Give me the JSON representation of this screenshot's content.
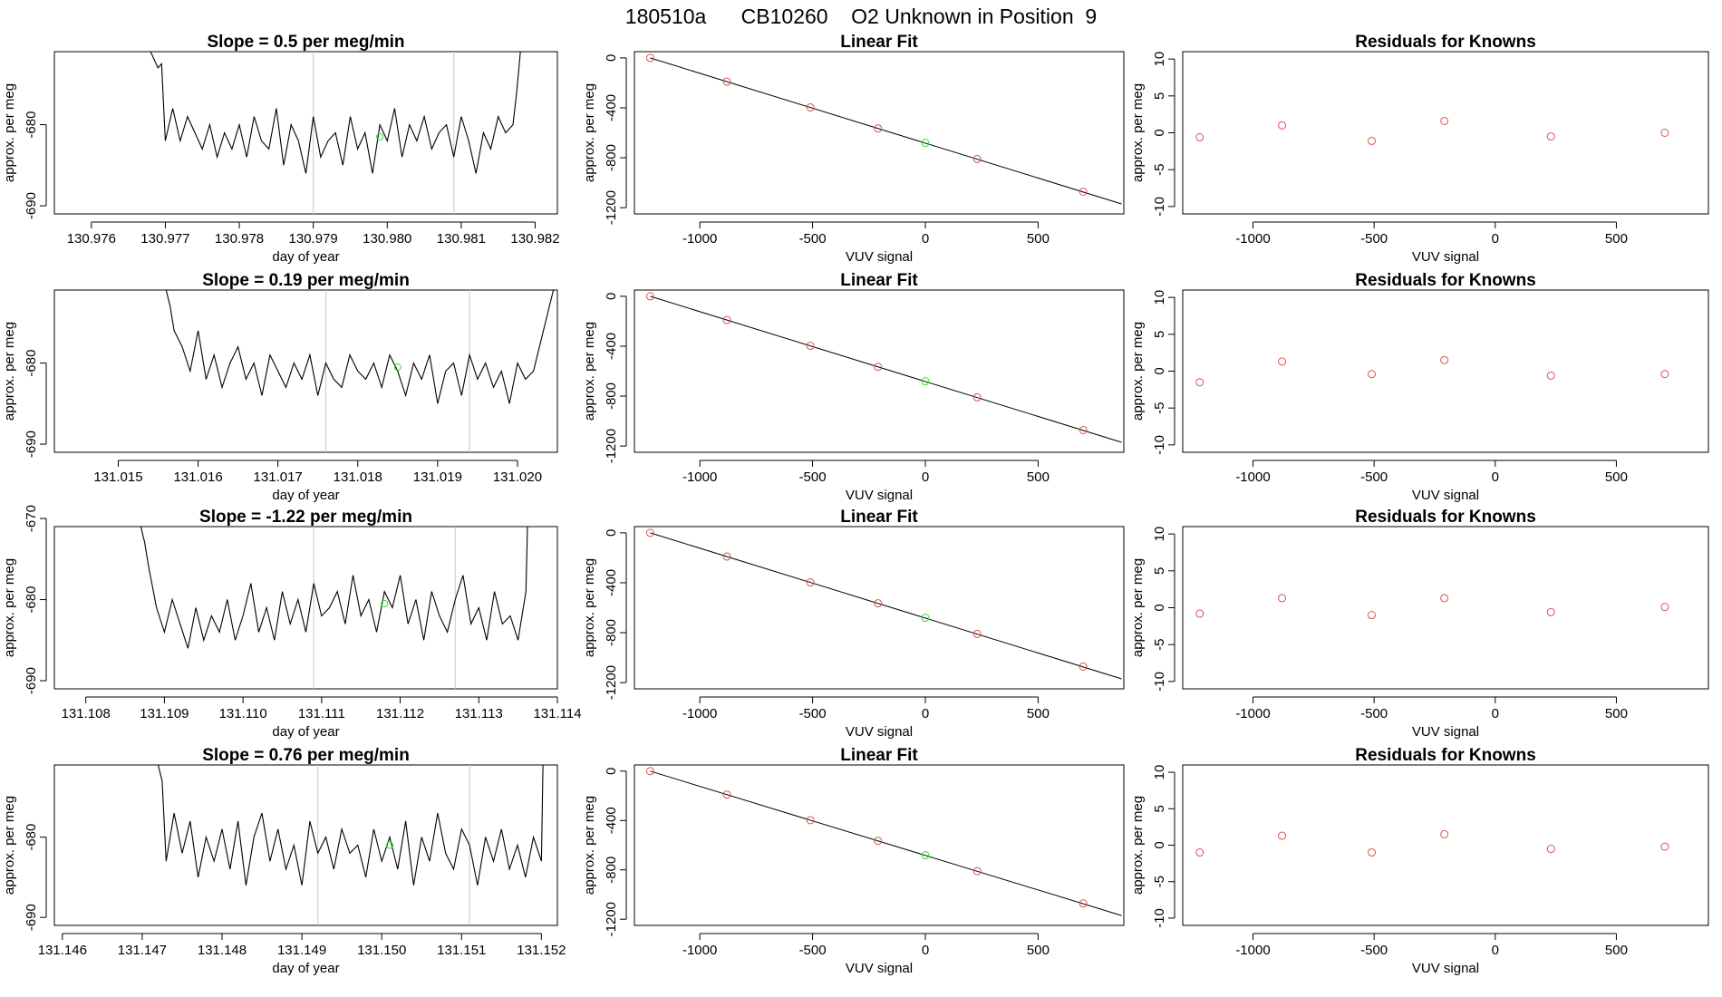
{
  "figure_title": "180510a      CB10260    O2 Unknown in Position  9",
  "colors": {
    "axis": "#000000",
    "trace": "#000000",
    "marker_line": "#c8c8c8",
    "known_point": "#d9534f",
    "unknown_point": "#33dd33",
    "fit_line": "#000000"
  },
  "chart_data": [
    {
      "type": "line",
      "title": "Slope =  0.5  per meg/min",
      "xlabel": "day of year",
      "ylabel": "approx. per meg",
      "xlim": [
        130.9755,
        130.9823
      ],
      "ylim": [
        -691,
        -671
      ],
      "xticks": [
        "130.976",
        "130.977",
        "130.978",
        "130.979",
        "130.980",
        "130.981",
        "130.982"
      ],
      "yticks": [
        "-680",
        "-690"
      ],
      "markers_x": [
        130.979,
        130.9809
      ],
      "highlight": {
        "x": 130.9799,
        "y": -681.5
      },
      "series": [
        {
          "x": [
            130.9768,
            130.9769,
            130.97695,
            130.977,
            130.9771,
            130.9772,
            130.9773,
            130.9774,
            130.9775,
            130.9776,
            130.9777,
            130.9778,
            130.9779,
            130.978,
            130.9781,
            130.9782,
            130.9783,
            130.9784,
            130.9785,
            130.9786,
            130.9787,
            130.9788,
            130.9789,
            130.979,
            130.9791,
            130.9792,
            130.9793,
            130.9794,
            130.9795,
            130.9796,
            130.9797,
            130.9798,
            130.9799,
            130.98,
            130.9801,
            130.9802,
            130.9803,
            130.9804,
            130.9805,
            130.9806,
            130.9807,
            130.9808,
            130.9809,
            130.981,
            130.9811,
            130.9812,
            130.9813,
            130.9814,
            130.9815,
            130.9816,
            130.9817,
            130.98175,
            130.9818
          ],
          "y": [
            -671,
            -673,
            -672.5,
            -682,
            -678,
            -682,
            -679,
            -681,
            -683,
            -680,
            -684,
            -681,
            -683,
            -680,
            -684,
            -679,
            -682,
            -683,
            -678,
            -685,
            -680,
            -682,
            -686,
            -679,
            -684,
            -682,
            -681,
            -685,
            -679,
            -683,
            -681,
            -686,
            -680,
            -682,
            -678,
            -684,
            -680,
            -682,
            -679,
            -683,
            -681,
            -680,
            -684,
            -679,
            -682,
            -686,
            -681,
            -683,
            -679,
            -681,
            -680,
            -676,
            -671
          ]
        }
      ]
    },
    {
      "type": "line",
      "title": "Linear Fit",
      "xlabel": "VUV signal",
      "ylabel": "approx. per meg",
      "xlim": [
        -1290,
        880
      ],
      "ylim": [
        -1250,
        50
      ],
      "xticks": [
        -1000,
        -500,
        0,
        500
      ],
      "yticks": [
        0,
        -400,
        -800,
        -1200
      ],
      "fit_line": {
        "x": [
          -1220,
          870
        ],
        "y": [
          0,
          -1170
        ]
      },
      "knowns": {
        "x": [
          -1220,
          -880,
          -510,
          -210,
          230,
          700
        ],
        "y": [
          0,
          -190,
          -397,
          -565,
          -810,
          -1072
        ]
      },
      "unknown": {
        "x": 0,
        "y": -681
      }
    },
    {
      "type": "scatter",
      "title": "Residuals for Knowns",
      "xlabel": "VUV signal",
      "ylabel": "approx. per meg",
      "xlim": [
        -1290,
        880
      ],
      "ylim": [
        -11,
        11
      ],
      "xticks": [
        -1000,
        -500,
        0,
        500
      ],
      "yticks": [
        10,
        5,
        0,
        -5,
        -10
      ],
      "x": [
        -1220,
        -880,
        -510,
        -210,
        230,
        700
      ],
      "y": [
        -0.6,
        1.0,
        -1.1,
        1.6,
        -0.5,
        0.0
      ]
    },
    {
      "type": "line",
      "title": "Slope =  0.19  per meg/min",
      "xlabel": "day of year",
      "ylabel": "approx. per meg",
      "xlim": [
        131.0142,
        131.0205
      ],
      "ylim": [
        -691,
        -671
      ],
      "xticks": [
        "131.015",
        "131.016",
        "131.017",
        "131.018",
        "131.019",
        "131.020"
      ],
      "yticks": [
        "-680",
        "-690"
      ],
      "markers_x": [
        131.0176,
        131.0194
      ],
      "highlight": {
        "x": 131.0185,
        "y": -680.5
      },
      "series": [
        {
          "x": [
            131.0156,
            131.01565,
            131.0157,
            131.0158,
            131.0159,
            131.016,
            131.0161,
            131.0162,
            131.0163,
            131.0164,
            131.0165,
            131.0166,
            131.0167,
            131.0168,
            131.0169,
            131.017,
            131.0171,
            131.0172,
            131.0173,
            131.0174,
            131.0175,
            131.0176,
            131.0177,
            131.0178,
            131.0179,
            131.018,
            131.0181,
            131.0182,
            131.0183,
            131.0184,
            131.0185,
            131.0186,
            131.0187,
            131.0188,
            131.0189,
            131.019,
            131.0191,
            131.0192,
            131.0193,
            131.0194,
            131.0195,
            131.0196,
            131.0197,
            131.0198,
            131.0199,
            131.02,
            131.0201,
            131.0202,
            131.0203,
            131.0204,
            131.02045
          ],
          "y": [
            -671,
            -673,
            -676,
            -678,
            -681,
            -676,
            -682,
            -679,
            -683,
            -680,
            -678,
            -682,
            -680,
            -684,
            -679,
            -681,
            -683,
            -680,
            -682,
            -679,
            -684,
            -680,
            -682,
            -683,
            -679,
            -681,
            -682,
            -680,
            -683,
            -679,
            -681,
            -684,
            -680,
            -682,
            -679,
            -685,
            -681,
            -680,
            -684,
            -679,
            -682,
            -680,
            -683,
            -681,
            -685,
            -680,
            -682,
            -681,
            -677,
            -673,
            -671
          ]
        }
      ]
    },
    {
      "type": "line",
      "title": "Linear Fit",
      "xlabel": "VUV signal",
      "ylabel": "approx. per meg",
      "xlim": [
        -1290,
        880
      ],
      "ylim": [
        -1250,
        50
      ],
      "xticks": [
        -1000,
        -500,
        0,
        500
      ],
      "yticks": [
        0,
        -400,
        -800,
        -1200
      ],
      "fit_line": {
        "x": [
          -1220,
          870
        ],
        "y": [
          0,
          -1170
        ]
      },
      "knowns": {
        "x": [
          -1220,
          -880,
          -510,
          -210,
          230,
          700
        ],
        "y": [
          0,
          -190,
          -397,
          -565,
          -810,
          -1072
        ]
      },
      "unknown": {
        "x": 0,
        "y": -681
      }
    },
    {
      "type": "scatter",
      "title": "Residuals for Knowns",
      "xlabel": "VUV signal",
      "ylabel": "approx. per meg",
      "xlim": [
        -1290,
        880
      ],
      "ylim": [
        -11,
        11
      ],
      "xticks": [
        -1000,
        -500,
        0,
        500
      ],
      "yticks": [
        10,
        5,
        0,
        -5,
        -10
      ],
      "x": [
        -1220,
        -880,
        -510,
        -210,
        230,
        700
      ],
      "y": [
        -1.5,
        1.3,
        -0.4,
        1.5,
        -0.6,
        -0.4
      ]
    },
    {
      "type": "line",
      "title": "Slope =  -1.22  per meg/min",
      "xlabel": "day of year",
      "ylabel": "approx. per meg",
      "xlim": [
        131.1076,
        131.114
      ],
      "ylim": [
        -691,
        -671
      ],
      "xticks": [
        "131.108",
        "131.109",
        "131.110",
        "131.111",
        "131.112",
        "131.113",
        "131.114"
      ],
      "yticks": [
        "-670",
        "-680",
        "-690"
      ],
      "markers_x": [
        131.1109,
        131.1127
      ],
      "highlight": {
        "x": 131.1118,
        "y": -680.5
      },
      "series": [
        {
          "x": [
            131.1087,
            131.10875,
            131.1088,
            131.1089,
            131.109,
            131.1091,
            131.1092,
            131.1093,
            131.1094,
            131.1095,
            131.1096,
            131.1097,
            131.1098,
            131.1099,
            131.11,
            131.1101,
            131.1102,
            131.1103,
            131.1104,
            131.1105,
            131.1106,
            131.1107,
            131.1108,
            131.1109,
            131.111,
            131.1111,
            131.1112,
            131.1113,
            131.1114,
            131.1115,
            131.1116,
            131.1117,
            131.1118,
            131.1119,
            131.112,
            131.1121,
            131.1122,
            131.1123,
            131.1124,
            131.1125,
            131.1126,
            131.1127,
            131.1128,
            131.1129,
            131.113,
            131.1131,
            131.1132,
            131.1133,
            131.1134,
            131.1135,
            131.1136,
            131.11362
          ],
          "y": [
            -671,
            -673,
            -676,
            -681,
            -684,
            -680,
            -683,
            -686,
            -681,
            -685,
            -682,
            -684,
            -680,
            -685,
            -682,
            -678,
            -684,
            -681,
            -685,
            -679,
            -683,
            -680,
            -684,
            -678,
            -682,
            -681,
            -679,
            -683,
            -677,
            -682,
            -680,
            -684,
            -679,
            -681,
            -677,
            -683,
            -680,
            -685,
            -679,
            -682,
            -684,
            -680,
            -677,
            -683,
            -681,
            -685,
            -679,
            -683,
            -682,
            -685,
            -679,
            -671
          ]
        }
      ]
    },
    {
      "type": "line",
      "title": "Linear Fit",
      "xlabel": "VUV signal",
      "ylabel": "approx. per meg",
      "xlim": [
        -1290,
        880
      ],
      "ylim": [
        -1250,
        50
      ],
      "xticks": [
        -1000,
        -500,
        0,
        500
      ],
      "yticks": [
        0,
        -400,
        -800,
        -1200
      ],
      "fit_line": {
        "x": [
          -1220,
          870
        ],
        "y": [
          0,
          -1170
        ]
      },
      "knowns": {
        "x": [
          -1220,
          -880,
          -510,
          -210,
          230,
          700
        ],
        "y": [
          0,
          -190,
          -397,
          -565,
          -810,
          -1072
        ]
      },
      "unknown": {
        "x": 0,
        "y": -681
      }
    },
    {
      "type": "scatter",
      "title": "Residuals for Knowns",
      "xlabel": "VUV signal",
      "ylabel": "approx. per meg",
      "xlim": [
        -1290,
        880
      ],
      "ylim": [
        -11,
        11
      ],
      "xticks": [
        -1000,
        -500,
        0,
        500
      ],
      "yticks": [
        10,
        5,
        0,
        -5,
        -10
      ],
      "x": [
        -1220,
        -880,
        -510,
        -210,
        230,
        700
      ],
      "y": [
        -0.8,
        1.3,
        -1.0,
        1.3,
        -0.6,
        0.1
      ]
    },
    {
      "type": "line",
      "title": "Slope =  0.76  per meg/min",
      "xlabel": "day of year",
      "ylabel": "approx. per meg",
      "xlim": [
        131.1459,
        131.1522
      ],
      "ylim": [
        -691,
        -671
      ],
      "xticks": [
        "131.146",
        "131.147",
        "131.148",
        "131.149",
        "131.150",
        "131.151",
        "131.152"
      ],
      "yticks": [
        "-680",
        "-690"
      ],
      "markers_x": [
        131.1492,
        131.1511
      ],
      "highlight": {
        "x": 131.1501,
        "y": -681
      },
      "series": [
        {
          "x": [
            131.1472,
            131.14725,
            131.1473,
            131.1474,
            131.1475,
            131.1476,
            131.1477,
            131.1478,
            131.1479,
            131.148,
            131.1481,
            131.1482,
            131.1483,
            131.1484,
            131.1485,
            131.1486,
            131.1487,
            131.1488,
            131.1489,
            131.149,
            131.1491,
            131.1492,
            131.1493,
            131.1494,
            131.1495,
            131.1496,
            131.1497,
            131.1498,
            131.1499,
            131.15,
            131.1501,
            131.1502,
            131.1503,
            131.1504,
            131.1505,
            131.1506,
            131.1507,
            131.1508,
            131.1509,
            131.151,
            131.1511,
            131.1512,
            131.1513,
            131.1514,
            131.1515,
            131.1516,
            131.1517,
            131.1518,
            131.1519,
            131.152,
            131.15202
          ],
          "y": [
            -671,
            -673,
            -683,
            -677,
            -682,
            -678,
            -685,
            -680,
            -683,
            -679,
            -684,
            -678,
            -686,
            -680,
            -677,
            -683,
            -679,
            -684,
            -681,
            -686,
            -678,
            -682,
            -680,
            -684,
            -679,
            -682,
            -681,
            -685,
            -679,
            -683,
            -680,
            -684,
            -678,
            -686,
            -680,
            -683,
            -677,
            -682,
            -684,
            -679,
            -681,
            -686,
            -680,
            -683,
            -679,
            -684,
            -681,
            -685,
            -680,
            -683,
            -671
          ]
        }
      ]
    },
    {
      "type": "line",
      "title": "Linear Fit",
      "xlabel": "VUV signal",
      "ylabel": "approx. per meg",
      "xlim": [
        -1290,
        880
      ],
      "ylim": [
        -1250,
        50
      ],
      "xticks": [
        -1000,
        -500,
        0,
        500
      ],
      "yticks": [
        0,
        -400,
        -800,
        -1200
      ],
      "fit_line": {
        "x": [
          -1220,
          870
        ],
        "y": [
          0,
          -1170
        ]
      },
      "knowns": {
        "x": [
          -1220,
          -880,
          -510,
          -210,
          230,
          700
        ],
        "y": [
          0,
          -190,
          -397,
          -565,
          -810,
          -1072
        ]
      },
      "unknown": {
        "x": 0,
        "y": -681
      }
    },
    {
      "type": "scatter",
      "title": "Residuals for Knowns",
      "xlabel": "VUV signal",
      "ylabel": "approx. per meg",
      "xlim": [
        -1290,
        880
      ],
      "ylim": [
        -11,
        11
      ],
      "xticks": [
        -1000,
        -500,
        0,
        500
      ],
      "yticks": [
        10,
        5,
        0,
        -5,
        -10
      ],
      "x": [
        -1220,
        -880,
        -510,
        -210,
        230,
        700
      ],
      "y": [
        -1.0,
        1.3,
        -1.0,
        1.5,
        -0.5,
        -0.2
      ]
    }
  ]
}
